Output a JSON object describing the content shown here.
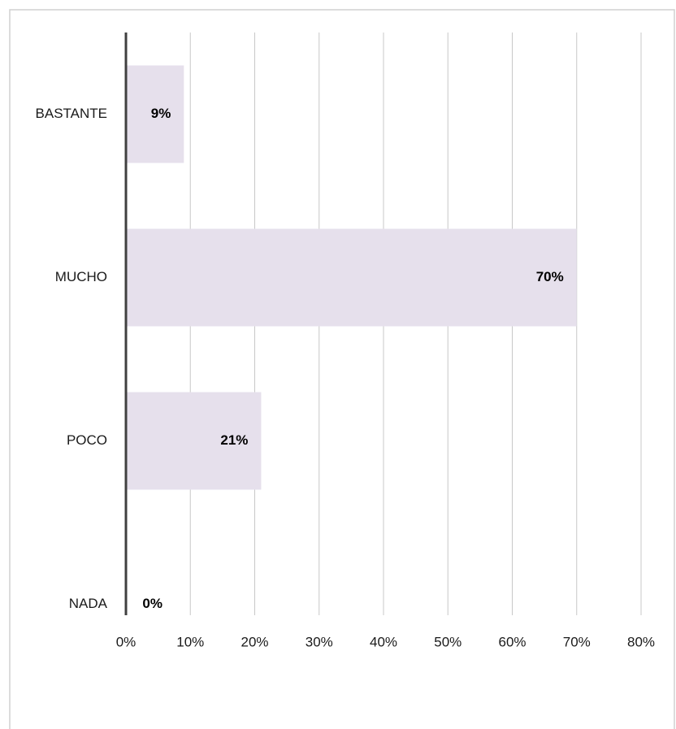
{
  "chart_data": {
    "type": "barh",
    "categories": [
      "BASTANTE",
      "MUCHO",
      "POCO",
      "NADA"
    ],
    "values": [
      9,
      70,
      21,
      0
    ],
    "value_labels": [
      "9%",
      "70%",
      "21%",
      "0%"
    ],
    "color": "#e6e0ec",
    "xlim": [
      0,
      80
    ],
    "xticks": [
      {
        "value": 0,
        "label": "0%"
      },
      {
        "value": 10,
        "label": "10%"
      },
      {
        "value": 20,
        "label": "20%"
      },
      {
        "value": 30,
        "label": "30%"
      },
      {
        "value": 40,
        "label": "40%"
      },
      {
        "value": 50,
        "label": "50%"
      },
      {
        "value": 60,
        "label": "60%"
      },
      {
        "value": 70,
        "label": "70%"
      },
      {
        "value": 80,
        "label": "80%"
      }
    ],
    "grid": true
  }
}
